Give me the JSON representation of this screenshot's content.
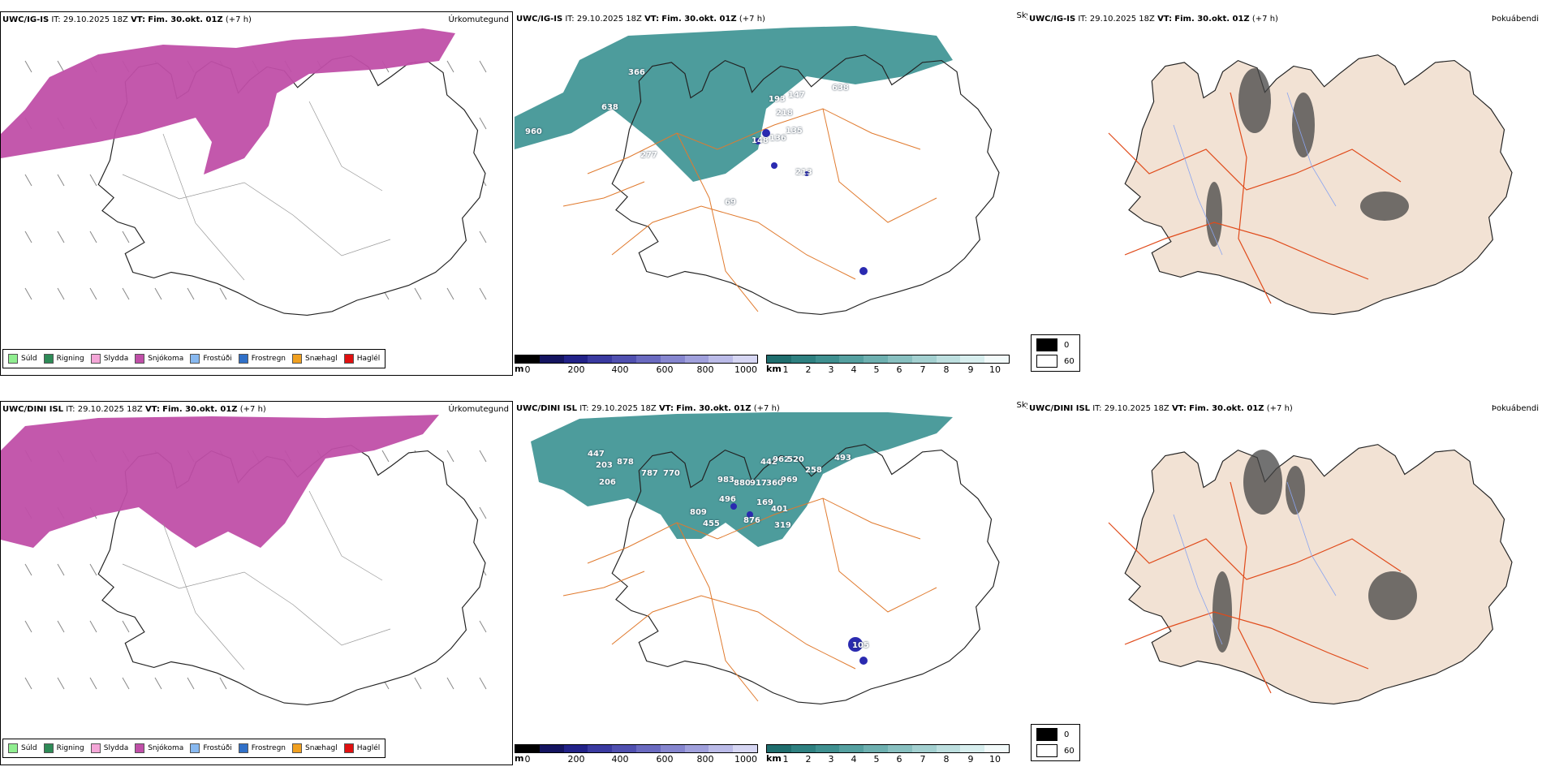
{
  "rows": [
    {
      "model": "UWC/IG-IS",
      "it_label": "IT:",
      "it_value": "29.10.2025 18Z",
      "vt_label": "VT:",
      "vt_value": "Fim. 30.okt. 01Z",
      "lead": "(+7 h)",
      "precip_label": "Úrkomutegund",
      "cloud_label": "Skyggni",
      "fog_label": "Þokuábendi",
      "cloud_values": [
        "366",
        "638",
        "960",
        "277",
        "193",
        "147",
        "638",
        "218",
        "135",
        "148",
        "136",
        "213",
        "69"
      ]
    },
    {
      "model": "UWC/DINI ISL",
      "it_label": "IT:",
      "it_value": "29.10.2025 18Z",
      "vt_label": "VT:",
      "vt_value": "Fim. 30.okt. 01Z",
      "lead": "(+7 h)",
      "precip_label": "Úrkomutegund",
      "cloud_label": "Skyggni",
      "fog_label": "Þokuábendi",
      "cloud_values": [
        "447",
        "203",
        "878",
        "787",
        "770",
        "206",
        "983",
        "880",
        "442",
        "962",
        "520",
        "258",
        "493",
        "917",
        "360",
        "969",
        "496",
        "169",
        "401",
        "809",
        "455",
        "876",
        "319",
        "105"
      ]
    }
  ],
  "precip_legend": [
    {
      "label": "Súld",
      "color": "#90EE90"
    },
    {
      "label": "Rigning",
      "color": "#2E8B57"
    },
    {
      "label": "Slydda",
      "color": "#F4A6D7"
    },
    {
      "label": "Snjókoma",
      "color": "#C04FA8"
    },
    {
      "label": "Frostúði",
      "color": "#87B8F0"
    },
    {
      "label": "Frostregn",
      "color": "#3070C8"
    },
    {
      "label": "Snæhagl",
      "color": "#F0A020"
    },
    {
      "label": "Haglél",
      "color": "#E01010"
    }
  ],
  "cloud_base_scale": {
    "unit": "m",
    "ticks": [
      "0",
      "200",
      "400",
      "600",
      "800",
      "1000"
    ],
    "colors": [
      "#000000",
      "#141460",
      "#222288",
      "#3a3aa0",
      "#5050b0",
      "#6a6ac0",
      "#8686cf",
      "#a0a0dc",
      "#bbbbe8",
      "#d6d6f3"
    ]
  },
  "visibility_scale": {
    "unit": "km",
    "ticks": [
      "1",
      "2",
      "3",
      "4",
      "5",
      "6",
      "7",
      "8",
      "9",
      "10"
    ],
    "colors": [
      "#1f6e6e",
      "#2e8080",
      "#3f9090",
      "#55a0a0",
      "#6eb0b0",
      "#88c0c0",
      "#a3d0d0",
      "#bddfdf",
      "#d7eeee",
      "#f2fafa"
    ]
  },
  "fog_key": [
    {
      "label": "0",
      "color": "#000000"
    },
    {
      "label": "60",
      "color": "#ffffff"
    }
  ]
}
